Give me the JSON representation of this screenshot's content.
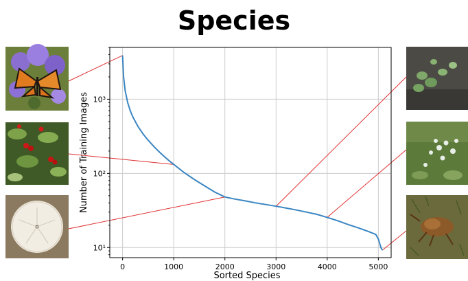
{
  "chart_data": {
    "type": "line",
    "title": "Species",
    "xlabel": "Sorted Species",
    "ylabel": "Number of Training Images",
    "xlim": [
      -250,
      5250
    ],
    "ylim": [
      7.3,
      5000
    ],
    "yscale": "log",
    "grid": true,
    "x_ticks": [
      "0",
      "1000",
      "2000",
      "3000",
      "4000",
      "5000"
    ],
    "x_tick_values": [
      0,
      1000,
      2000,
      3000,
      4000,
      5000
    ],
    "y_ticks": [
      "10³",
      "10²",
      "10¹"
    ],
    "y_tick_values": [
      1000,
      100,
      10
    ],
    "series": [
      {
        "color": "#3a85c2",
        "x": [
          0,
          20,
          50,
          100,
          150,
          200,
          300,
          400,
          500,
          600,
          700,
          800,
          900,
          1000,
          1200,
          1400,
          1600,
          1800,
          2000,
          2200,
          2400,
          2600,
          2800,
          3000,
          3200,
          3400,
          3600,
          3800,
          4000,
          4200,
          4400,
          4600,
          4800,
          4950,
          5000,
          5050,
          5080
        ],
        "y": [
          3900,
          2000,
          1300,
          900,
          700,
          580,
          430,
          340,
          280,
          235,
          200,
          172,
          150,
          132,
          103,
          83,
          68,
          56,
          48,
          45,
          42.5,
          40,
          38,
          36,
          34,
          32,
          30,
          28,
          25.5,
          23,
          20.5,
          18.5,
          16.5,
          15,
          13,
          10,
          9.2
        ]
      }
    ],
    "thumbnails": [
      {
        "subject": "monarch butterfly on purple asters"
      },
      {
        "subject": "plant with red berries"
      },
      {
        "subject": "sand dollar"
      },
      {
        "subject": "green succulent-like plant on rock"
      },
      {
        "subject": "white flowering plant"
      },
      {
        "subject": "brown insect on ground"
      }
    ],
    "callout_color": "#e03030",
    "gridline_color": "#cccccc"
  }
}
